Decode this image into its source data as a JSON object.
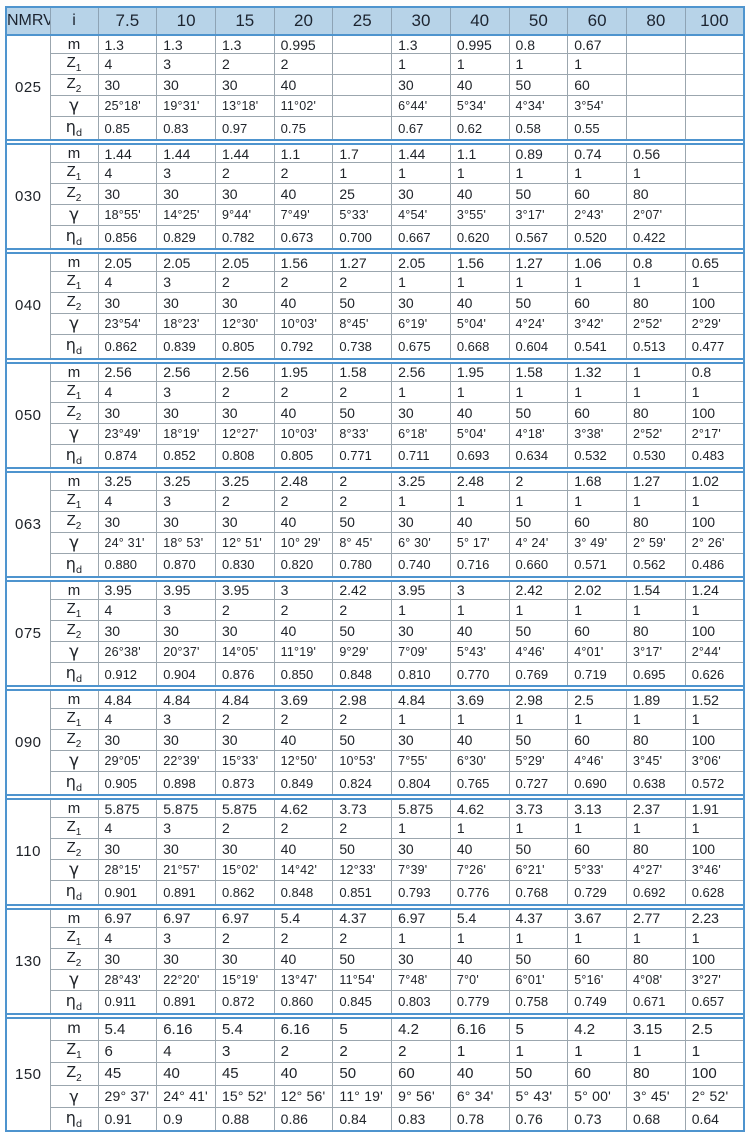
{
  "corner": {
    "model": "NMRV",
    "ratio": "i"
  },
  "columns": [
    "7.5",
    "10",
    "15",
    "20",
    "25",
    "30",
    "40",
    "50",
    "60",
    "80",
    "100"
  ],
  "row_labels": [
    {
      "key": "m",
      "base": "m",
      "sub": ""
    },
    {
      "key": "z1",
      "base": "Z",
      "sub": "1"
    },
    {
      "key": "z2",
      "base": "Z",
      "sub": "2"
    },
    {
      "key": "gamma",
      "base": "γ",
      "sub": ""
    },
    {
      "key": "eta",
      "base": "η",
      "sub": "d"
    }
  ],
  "colors": {
    "header_bg": "#b7d3e8",
    "separator_blue": "#4e94ce",
    "grid_gray": "#9ba6ae",
    "text": "#20242a"
  },
  "groups": [
    {
      "model": "025",
      "m": [
        "1.3",
        "1.3",
        "1.3",
        "0.995",
        "",
        "1.3",
        "0.995",
        "0.8",
        "0.67",
        "",
        ""
      ],
      "z1": [
        "4",
        "3",
        "2",
        "2",
        "",
        "1",
        "1",
        "1",
        "1",
        "",
        ""
      ],
      "z2": [
        "30",
        "30",
        "30",
        "40",
        "",
        "30",
        "40",
        "50",
        "60",
        "",
        ""
      ],
      "gamma": [
        "25°18'",
        "19°31'",
        "13°18'",
        "11°02'",
        "",
        "6°44'",
        "5°34'",
        "4°34'",
        "3°54'",
        "",
        ""
      ],
      "eta": [
        "0.85",
        "0.83",
        "0.97",
        "0.75",
        "",
        "0.67",
        "0.62",
        "0.58",
        "0.55",
        "",
        ""
      ]
    },
    {
      "model": "030",
      "m": [
        "1.44",
        "1.44",
        "1.44",
        "1.1",
        "1.7",
        "1.44",
        "1.1",
        "0.89",
        "0.74",
        "0.56",
        ""
      ],
      "z1": [
        "4",
        "3",
        "2",
        "2",
        "1",
        "1",
        "1",
        "1",
        "1",
        "1",
        ""
      ],
      "z2": [
        "30",
        "30",
        "30",
        "40",
        "25",
        "30",
        "40",
        "50",
        "60",
        "80",
        ""
      ],
      "gamma": [
        "18°55'",
        "14°25'",
        "9°44'",
        "7°49'",
        "5°33'",
        "4°54'",
        "3°55'",
        "3°17'",
        "2°43'",
        "2°07'",
        ""
      ],
      "eta": [
        "0.856",
        "0.829",
        "0.782",
        "0.673",
        "0.700",
        "0.667",
        "0.620",
        "0.567",
        "0.520",
        "0.422",
        ""
      ]
    },
    {
      "model": "040",
      "m": [
        "2.05",
        "2.05",
        "2.05",
        "1.56",
        "1.27",
        "2.05",
        "1.56",
        "1.27",
        "1.06",
        "0.8",
        "0.65"
      ],
      "z1": [
        "4",
        "3",
        "2",
        "2",
        "2",
        "1",
        "1",
        "1",
        "1",
        "1",
        "1"
      ],
      "z2": [
        "30",
        "30",
        "30",
        "40",
        "50",
        "30",
        "40",
        "50",
        "60",
        "80",
        "100"
      ],
      "gamma": [
        "23°54'",
        "18°23'",
        "12°30'",
        "10°03'",
        "8°45'",
        "6°19'",
        "5°04'",
        "4°24'",
        "3°42'",
        "2°52'",
        "2°29'"
      ],
      "eta": [
        "0.862",
        "0.839",
        "0.805",
        "0.792",
        "0.738",
        "0.675",
        "0.668",
        "0.604",
        "0.541",
        "0.513",
        "0.477"
      ]
    },
    {
      "model": "050",
      "m": [
        "2.56",
        "2.56",
        "2.56",
        "1.95",
        "1.58",
        "2.56",
        "1.95",
        "1.58",
        "1.32",
        "1",
        "0.8"
      ],
      "z1": [
        "4",
        "3",
        "2",
        "2",
        "2",
        "1",
        "1",
        "1",
        "1",
        "1",
        "1"
      ],
      "z2": [
        "30",
        "30",
        "30",
        "40",
        "50",
        "30",
        "40",
        "50",
        "60",
        "80",
        "100"
      ],
      "gamma": [
        "23°49'",
        "18°19'",
        "12°27'",
        "10°03'",
        "8°33'",
        "6°18'",
        "5°04'",
        "4°18'",
        "3°38'",
        "2°52'",
        "2°17'"
      ],
      "eta": [
        "0.874",
        "0.852",
        "0.808",
        "0.805",
        "0.771",
        "0.711",
        "0.693",
        "0.634",
        "0.532",
        "0.530",
        "0.483"
      ]
    },
    {
      "model": "063",
      "m": [
        "3.25",
        "3.25",
        "3.25",
        "2.48",
        "2",
        "3.25",
        "2.48",
        "2",
        "1.68",
        "1.27",
        "1.02"
      ],
      "z1": [
        "4",
        "3",
        "2",
        "2",
        "2",
        "1",
        "1",
        "1",
        "1",
        "1",
        "1"
      ],
      "z2": [
        "30",
        "30",
        "30",
        "40",
        "50",
        "30",
        "40",
        "50",
        "60",
        "80",
        "100"
      ],
      "gamma": [
        "24° 31'",
        "18° 53'",
        "12° 51'",
        "10° 29'",
        "8° 45'",
        "6° 30'",
        "5° 17'",
        "4° 24'",
        "3° 49'",
        "2° 59'",
        "2° 26'"
      ],
      "eta": [
        "0.880",
        "0.870",
        "0.830",
        "0.820",
        "0.780",
        "0.740",
        "0.716",
        "0.660",
        "0.571",
        "0.562",
        "0.486"
      ]
    },
    {
      "model": "075",
      "m": [
        "3.95",
        "3.95",
        "3.95",
        "3",
        "2.42",
        "3.95",
        "3",
        "2.42",
        "2.02",
        "1.54",
        "1.24"
      ],
      "z1": [
        "4",
        "3",
        "2",
        "2",
        "2",
        "1",
        "1",
        "1",
        "1",
        "1",
        "1"
      ],
      "z2": [
        "30",
        "30",
        "30",
        "40",
        "50",
        "30",
        "40",
        "50",
        "60",
        "80",
        "100"
      ],
      "gamma": [
        "26°38'",
        "20°37'",
        "14°05'",
        "11°19'",
        "9°29'",
        "7°09'",
        "5°43'",
        "4°46'",
        "4°01'",
        "3°17'",
        "2°44'"
      ],
      "eta": [
        "0.912",
        "0.904",
        "0.876",
        "0.850",
        "0.848",
        "0.810",
        "0.770",
        "0.769",
        "0.719",
        "0.695",
        "0.626"
      ]
    },
    {
      "model": "090",
      "m": [
        "4.84",
        "4.84",
        "4.84",
        "3.69",
        "2.98",
        "4.84",
        "3.69",
        "2.98",
        "2.5",
        "1.89",
        "1.52"
      ],
      "z1": [
        "4",
        "3",
        "2",
        "2",
        "2",
        "1",
        "1",
        "1",
        "1",
        "1",
        "1"
      ],
      "z2": [
        "30",
        "30",
        "30",
        "40",
        "50",
        "30",
        "40",
        "50",
        "60",
        "80",
        "100"
      ],
      "gamma": [
        "29°05'",
        "22°39'",
        "15°33'",
        "12°50'",
        "10°53'",
        "7°55'",
        "6°30'",
        "5°29'",
        "4°46'",
        "3°45'",
        "3°06'"
      ],
      "eta": [
        "0.905",
        "0.898",
        "0.873",
        "0.849",
        "0.824",
        "0.804",
        "0.765",
        "0.727",
        "0.690",
        "0.638",
        "0.572"
      ]
    },
    {
      "model": "110",
      "m": [
        "5.875",
        "5.875",
        "5.875",
        "4.62",
        "3.73",
        "5.875",
        "4.62",
        "3.73",
        "3.13",
        "2.37",
        "1.91"
      ],
      "z1": [
        "4",
        "3",
        "2",
        "2",
        "2",
        "1",
        "1",
        "1",
        "1",
        "1",
        "1"
      ],
      "z2": [
        "30",
        "30",
        "30",
        "40",
        "50",
        "30",
        "40",
        "50",
        "60",
        "80",
        "100"
      ],
      "gamma": [
        "28°15'",
        "21°57'",
        "15°02'",
        "14°42'",
        "12°33'",
        "7°39'",
        "7°26'",
        "6°21'",
        "5°33'",
        "4°27'",
        "3°46'"
      ],
      "eta": [
        "0.901",
        "0.891",
        "0.862",
        "0.848",
        "0.851",
        "0.793",
        "0.776",
        "0.768",
        "0.729",
        "0.692",
        "0.628"
      ]
    },
    {
      "model": "130",
      "m": [
        "6.97",
        "6.97",
        "6.97",
        "5.4",
        "4.37",
        "6.97",
        "5.4",
        "4.37",
        "3.67",
        "2.77",
        "2.23"
      ],
      "z1": [
        "4",
        "3",
        "2",
        "2",
        "2",
        "1",
        "1",
        "1",
        "1",
        "1",
        "1"
      ],
      "z2": [
        "30",
        "30",
        "30",
        "40",
        "50",
        "30",
        "40",
        "50",
        "60",
        "80",
        "100"
      ],
      "gamma": [
        "28°43'",
        "22°20'",
        "15°19'",
        "13°47'",
        "11°54'",
        "7°48'",
        "7°0'",
        "6°01'",
        "5°16'",
        "4°08'",
        "3°27'"
      ],
      "eta": [
        "0.911",
        "0.891",
        "0.872",
        "0.860",
        "0.845",
        "0.803",
        "0.779",
        "0.758",
        "0.749",
        "0.671",
        "0.657"
      ]
    },
    {
      "model": "150",
      "m": [
        "5.4",
        "6.16",
        "5.4",
        "6.16",
        "5",
        "4.2",
        "6.16",
        "5",
        "4.2",
        "3.15",
        "2.5"
      ],
      "z1": [
        "6",
        "4",
        "3",
        "2",
        "2",
        "2",
        "1",
        "1",
        "1",
        "1",
        "1"
      ],
      "z2": [
        "45",
        "40",
        "45",
        "40",
        "50",
        "60",
        "40",
        "50",
        "60",
        "80",
        "100"
      ],
      "gamma": [
        "29° 37'",
        "24° 41'",
        "15° 52'",
        "12° 56'",
        "11° 19'",
        "9° 56'",
        "6° 34'",
        "5° 43'",
        "5° 00'",
        "3° 45'",
        "2° 52'"
      ],
      "eta": [
        "0.91",
        "0.9",
        "0.88",
        "0.86",
        "0.84",
        "0.83",
        "0.78",
        "0.76",
        "0.73",
        "0.68",
        "0.64"
      ]
    }
  ]
}
